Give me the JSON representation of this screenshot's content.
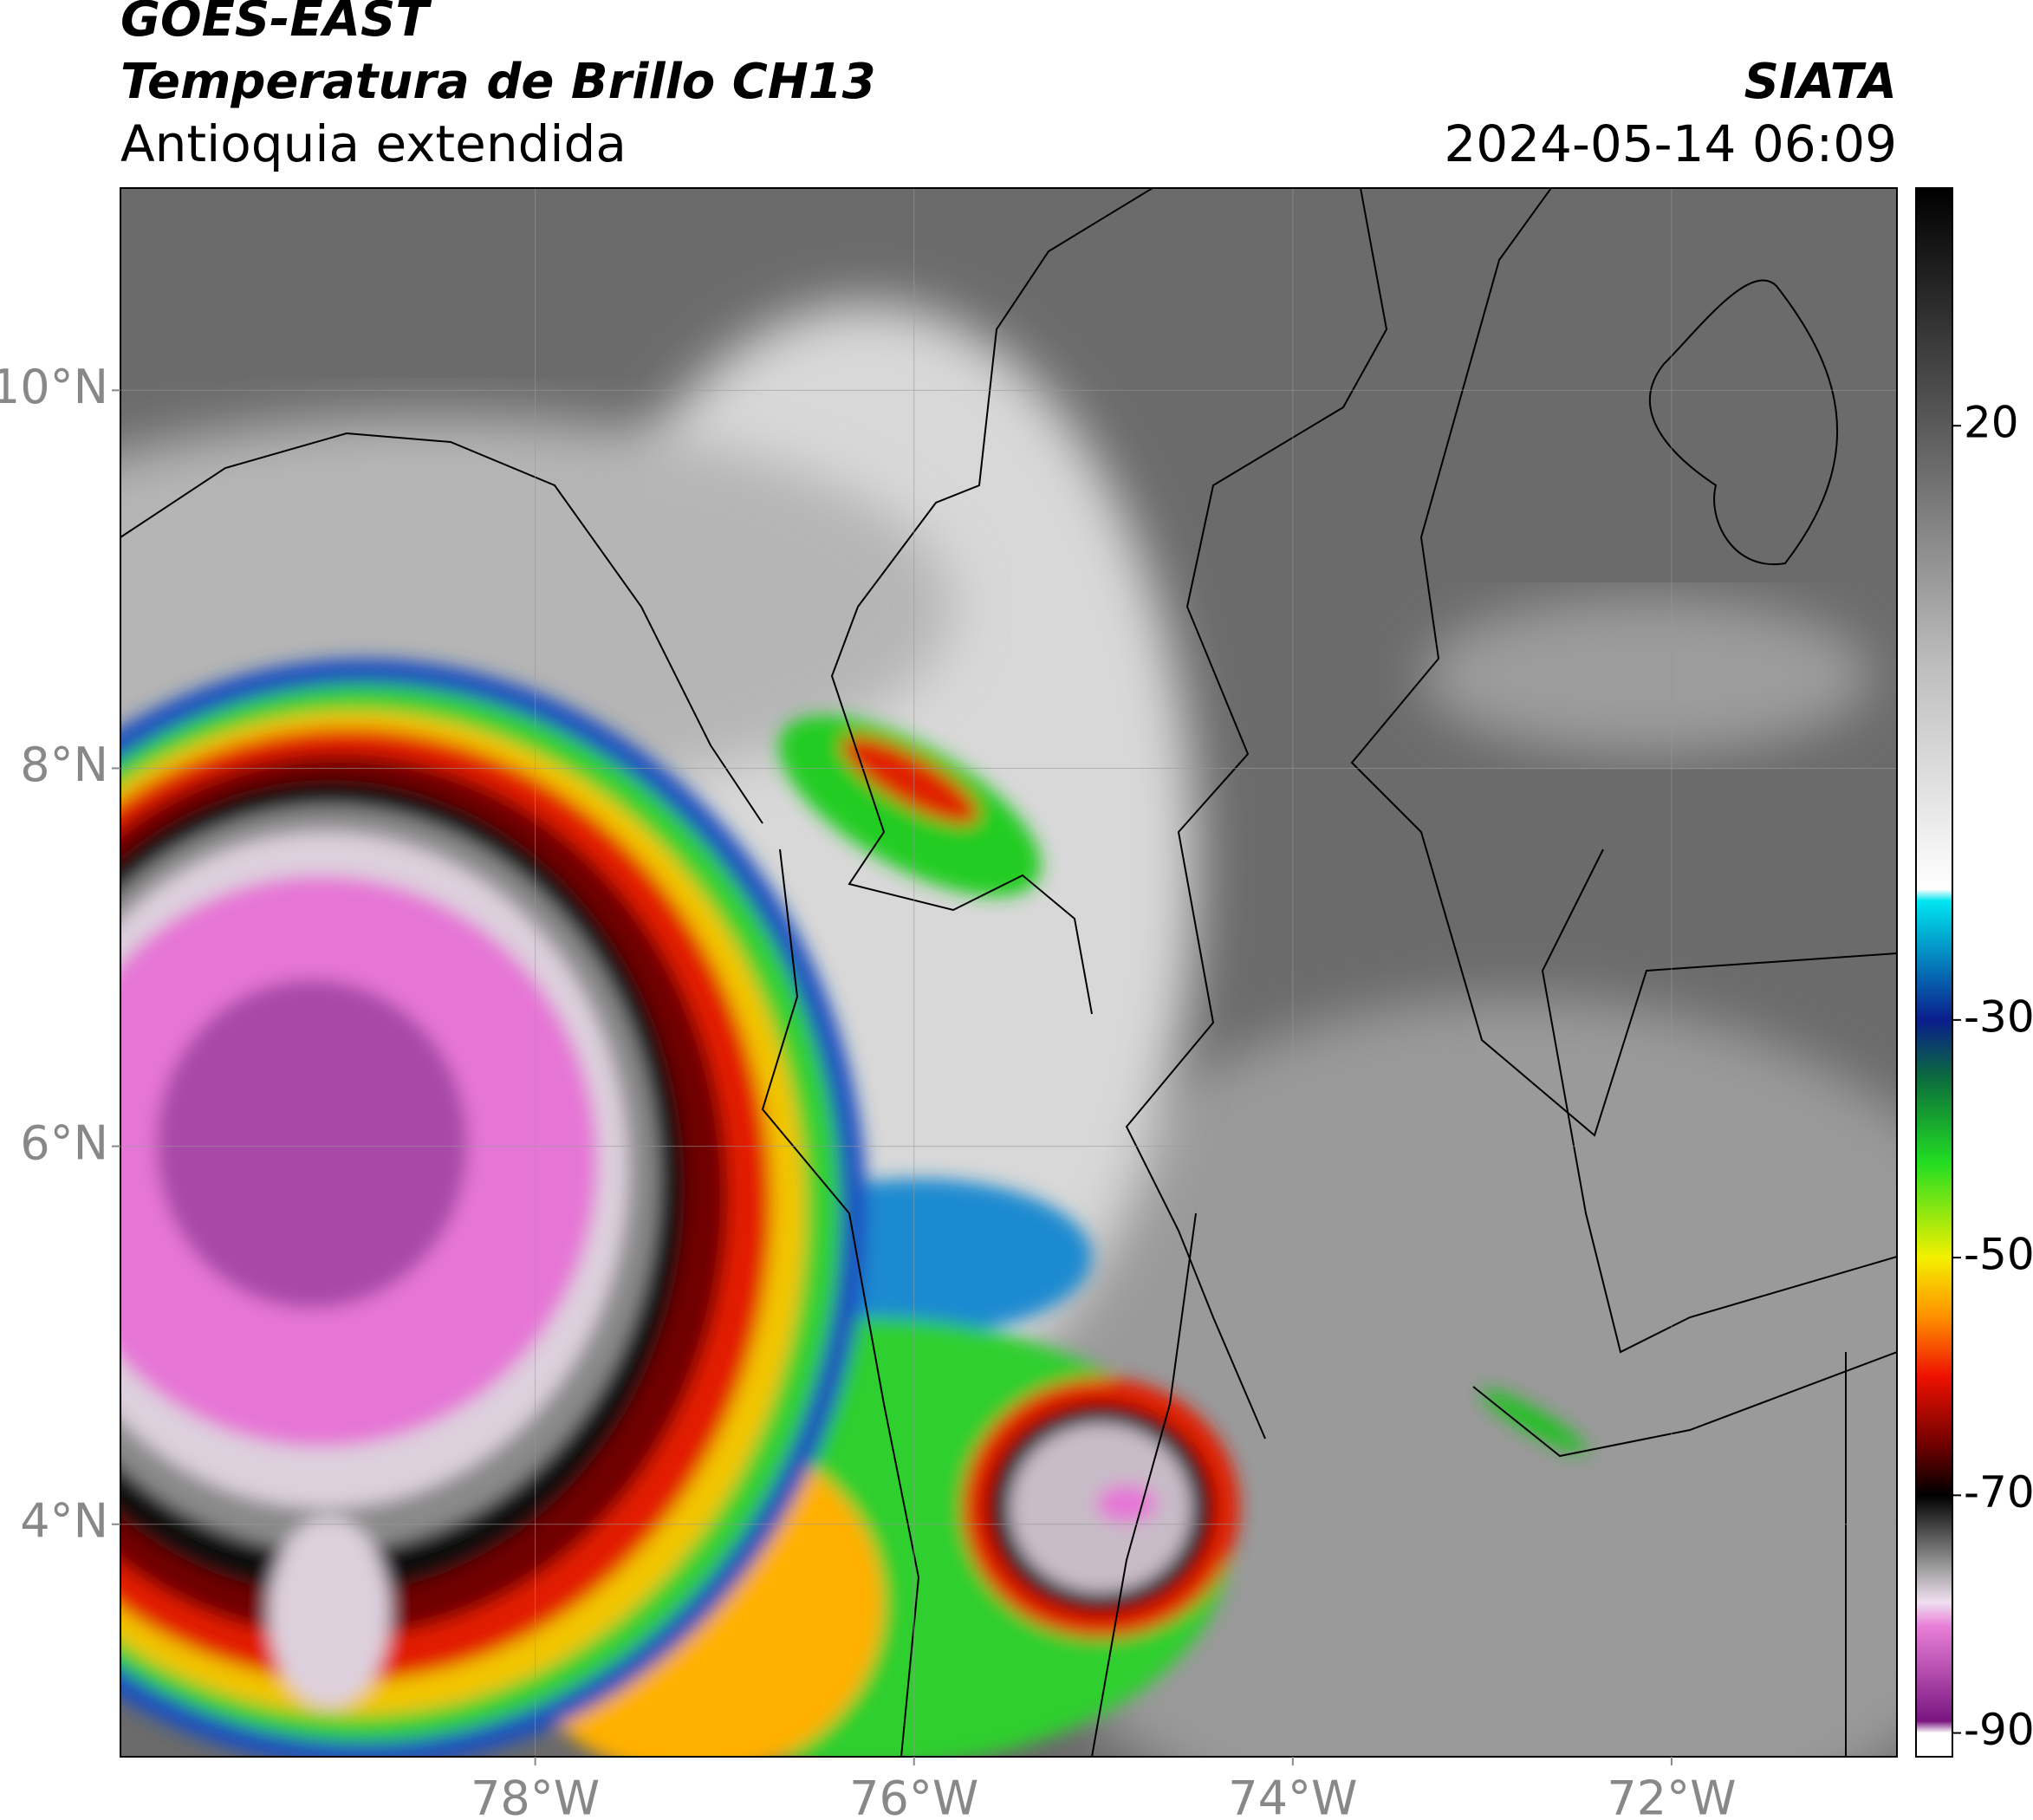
{
  "header": {
    "line1": "GOES-EAST",
    "line2": "Temperatura de Brillo CH13",
    "line3": "Antioquia extendida",
    "source": "SIATA",
    "datetime": "2024-05-14 06:09"
  },
  "map": {
    "xlim": [
      -80.19,
      -70.81
    ],
    "ylim": [
      2.77,
      11.07
    ],
    "grid": true,
    "xticks": [
      {
        "value": -78,
        "label": "78°W"
      },
      {
        "value": -76,
        "label": "76°W"
      },
      {
        "value": -74,
        "label": "74°W"
      },
      {
        "value": -72,
        "label": "72°W"
      }
    ],
    "yticks": [
      {
        "value": 4,
        "label": "4°N"
      },
      {
        "value": 6,
        "label": "6°N"
      },
      {
        "value": 8,
        "label": "8°N"
      },
      {
        "value": 10,
        "label": "10°N"
      }
    ]
  },
  "colorbar": {
    "ylim": [
      -92,
      40
    ],
    "yticks": [
      20,
      -30,
      -50,
      -70,
      -90
    ],
    "color_stops": [
      {
        "value": 40,
        "color": "#000000"
      },
      {
        "value": 20,
        "color": "#5a5a5a"
      },
      {
        "value": 0,
        "color": "#bdbdbd"
      },
      {
        "value": -19,
        "color": "#ffffff"
      },
      {
        "value": -20,
        "color": "#00e5f0"
      },
      {
        "value": -30,
        "color": "#0a1e8c"
      },
      {
        "value": -35,
        "color": "#0c6e3c"
      },
      {
        "value": -42,
        "color": "#22dd22"
      },
      {
        "value": -50,
        "color": "#f4f000"
      },
      {
        "value": -55,
        "color": "#ff9000"
      },
      {
        "value": -60,
        "color": "#ee1100"
      },
      {
        "value": -66,
        "color": "#6a0000"
      },
      {
        "value": -70,
        "color": "#000000"
      },
      {
        "value": -76,
        "color": "#9a9a9a"
      },
      {
        "value": -79,
        "color": "#f0e0f0"
      },
      {
        "value": -81,
        "color": "#e880d8"
      },
      {
        "value": -89,
        "color": "#7a1580"
      },
      {
        "value": -90,
        "color": "#ffffff"
      }
    ]
  }
}
